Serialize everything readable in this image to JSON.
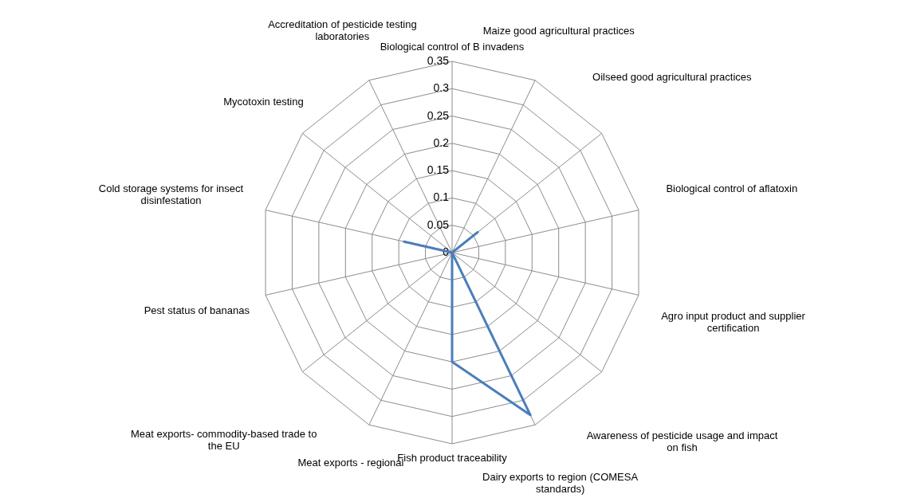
{
  "chart_data": {
    "type": "radar",
    "categories": [
      "Biological control of B invadens",
      "Maize good agricultural practices",
      "Oilseed good agricultural practices",
      "Biological control of aflatoxin",
      "Agro input product and supplier certification",
      "Awareness of pesticide usage and impact on fish",
      "Dairy exports to region (COMESA standards)",
      "Fish product traceability",
      "Meat exports - regional",
      "Meat exports- commodity-based trade to the EU",
      "Pest status of bananas",
      "Cold storage systems for insect disinfestation",
      "Mycotoxin testing",
      "Accreditation of pesticide testing laboratories"
    ],
    "series": [
      {
        "color": "#4a7ebb",
        "values": [
          0,
          0,
          0.06,
          0,
          0,
          0,
          0.33,
          0.2,
          0,
          0,
          0,
          0.09,
          0,
          0
        ]
      }
    ],
    "ylim": [
      0,
      0.35
    ],
    "yticks": [
      0,
      0.05,
      0.1,
      0.15,
      0.2,
      0.25,
      0.3,
      0.35
    ],
    "grid": true,
    "marker": "none",
    "line_style": "solid"
  }
}
